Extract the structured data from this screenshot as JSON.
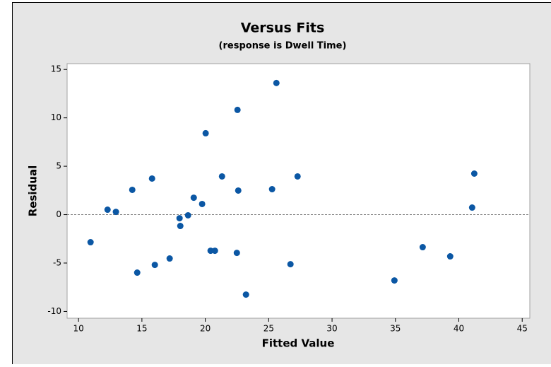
{
  "chart_data": {
    "type": "scatter",
    "title": "Versus Fits",
    "subtitle": "(response is Dwell Time)",
    "x_label": "Fitted Value",
    "y_label": "Residual",
    "color": "#0b57a4",
    "x": [
      10.95,
      12.29,
      12.95,
      14.24,
      14.63,
      15.8,
      16.02,
      17.19,
      17.97,
      18.03,
      18.64,
      19.09,
      19.75,
      20.03,
      20.42,
      20.76,
      21.32,
      22.49,
      22.54,
      22.6,
      23.21,
      25.27,
      25.61,
      26.72,
      27.28,
      34.92,
      37.15,
      39.32,
      41.05,
      41.22
    ],
    "values": [
      -2.85,
      0.51,
      0.29,
      2.56,
      -5.99,
      3.73,
      -5.19,
      -4.53,
      -0.37,
      -1.17,
      -0.07,
      1.75,
      1.1,
      8.41,
      -3.73,
      -3.73,
      3.95,
      -3.95,
      10.82,
      2.49,
      -8.26,
      2.63,
      13.6,
      -5.12,
      3.95,
      -6.8,
      -3.36,
      -4.31,
      0.73,
      4.24
    ],
    "xlim": [
      9.1,
      45.6
    ],
    "xticks": [
      10,
      15,
      20,
      25,
      30,
      35,
      40,
      45
    ],
    "ylim": [
      -10.7,
      15.6
    ],
    "yticks": [
      -10,
      -5,
      0,
      5,
      10,
      15
    ],
    "reference_line": 0
  }
}
